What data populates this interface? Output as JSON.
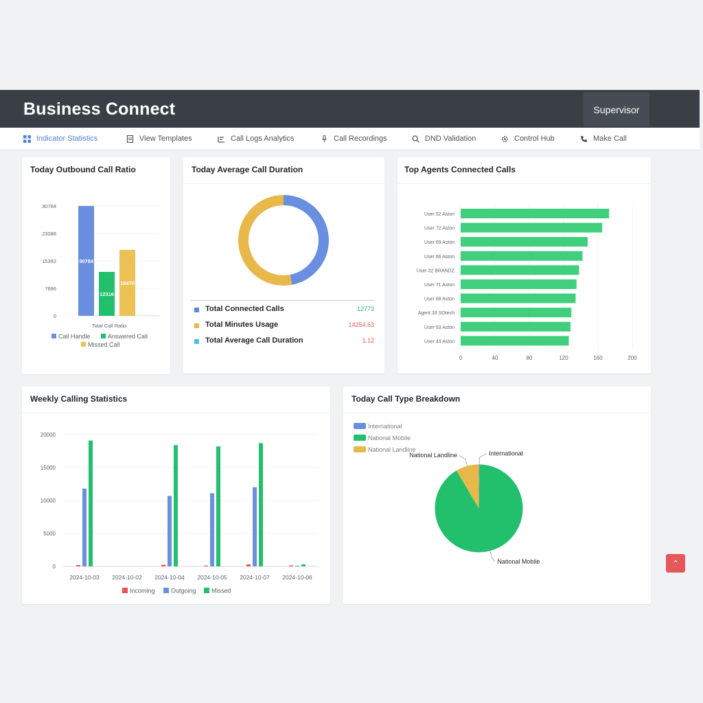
{
  "app": {
    "title": "Business Connect",
    "role": "Supervisor"
  },
  "nav": [
    {
      "label": "Indicator Statistics",
      "icon": "dashboard-icon",
      "active": true
    },
    {
      "label": "View Templates",
      "icon": "document-icon"
    },
    {
      "label": "Call Logs Analytics",
      "icon": "list-chart-icon"
    },
    {
      "label": "Call Recordings",
      "icon": "microphone-icon"
    },
    {
      "label": "DND Validation",
      "icon": "search-icon"
    },
    {
      "label": "Control Hub",
      "icon": "gear-icon"
    },
    {
      "label": "Make Call",
      "icon": "phone-icon"
    }
  ],
  "cards": {
    "outbound_ratio": {
      "title": "Today Outbound Call Ratio"
    },
    "avg_duration": {
      "title": "Today Average Call Duration",
      "stats": [
        {
          "label": "Total Connected Calls",
          "value": "12773",
          "color": "#5b86e5",
          "value_color": "#24b36b"
        },
        {
          "label": "Total Minutes Usage",
          "value": "14254.63",
          "color": "#e8b84a",
          "value_color": "#e55353"
        },
        {
          "label": "Total Average Call Duration",
          "value": "1.12",
          "color": "#4fc1d9",
          "value_color": "#e55353"
        }
      ]
    },
    "top_agents": {
      "title": "Top Agents Connected Calls"
    },
    "weekly": {
      "title": "Weekly Calling Statistics"
    },
    "call_type": {
      "title": "Today Call Type Breakdown"
    }
  },
  "chart_data": [
    {
      "type": "bar",
      "id": "outbound_ratio",
      "categories": [
        "Total Call Ratio"
      ],
      "series": [
        {
          "name": "Call Handle",
          "values": [
            30784
          ],
          "color": "#6b8fe0",
          "label": "30784"
        },
        {
          "name": "Answered Call",
          "values": [
            12316
          ],
          "color": "#22c06d",
          "label": "12316"
        },
        {
          "name": "Missed Call",
          "values": [
            18470
          ],
          "color": "#ecc155",
          "label": "18470"
        }
      ],
      "yticks": [
        "0",
        "7696",
        "15392",
        "23088",
        "30784"
      ],
      "ylim": [
        0,
        30784
      ],
      "xlabel": "",
      "legend": "bottom"
    },
    {
      "type": "pie",
      "id": "avg_duration_donut",
      "slices": [
        {
          "name": "Total Connected Calls",
          "value": 47,
          "color": "#6b8fe0"
        },
        {
          "name": "Total Minutes Usage",
          "value": 53,
          "color": "#e8b84a"
        }
      ]
    },
    {
      "type": "bar",
      "id": "top_agents",
      "orientation": "horizontal",
      "categories": [
        "User 52 Aston",
        "User 72 Aston",
        "User 69 Aston",
        "User 66 Aston",
        "User 32 BRANDZ",
        "User 71 Aston",
        "User 68 Aston",
        "Agent 33 SOtech",
        "User 53 Aston",
        "User 44 Aston"
      ],
      "values": [
        173,
        165,
        148,
        142,
        138,
        135,
        134,
        129,
        128,
        126
      ],
      "color": "#3fcf7d",
      "xticks": [
        "0",
        "40",
        "80",
        "120",
        "160",
        "200"
      ],
      "xlim": [
        0,
        200
      ]
    },
    {
      "type": "bar",
      "id": "weekly",
      "categories": [
        "2024-10-03",
        "2024-10-02",
        "2024-10-04",
        "2024-10-05",
        "2024-10-07",
        "2024-10-06"
      ],
      "series": [
        {
          "name": "Incoming",
          "values": [
            200,
            0,
            250,
            120,
            300,
            150
          ],
          "color": "#e55353"
        },
        {
          "name": "Outgoing",
          "values": [
            11800,
            0,
            10700,
            11100,
            12000,
            100
          ],
          "color": "#6b8fe0"
        },
        {
          "name": "Missed",
          "values": [
            19100,
            0,
            18400,
            18200,
            18700,
            300
          ],
          "color": "#22c06d"
        }
      ],
      "yticks": [
        "0",
        "5000",
        "10000",
        "15000",
        "20000"
      ],
      "ylim": [
        0,
        20000
      ],
      "legend": "bottom"
    },
    {
      "type": "pie",
      "id": "call_type",
      "slices": [
        {
          "name": "International",
          "value": 0.3,
          "color": "#6b8fe0"
        },
        {
          "name": "National Mobile",
          "value": 91.2,
          "color": "#22c06d"
        },
        {
          "name": "National Landline",
          "value": 8.5,
          "color": "#e8b84a"
        }
      ],
      "legend": "top-left"
    }
  ],
  "fab": {
    "icon": "chevron-up-icon",
    "glyph": "⌃"
  }
}
